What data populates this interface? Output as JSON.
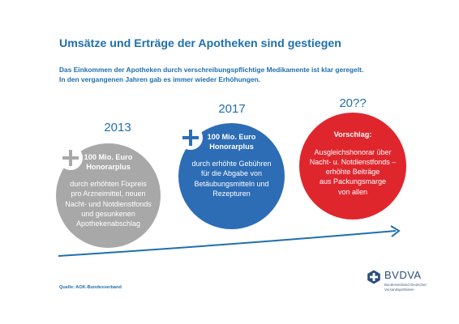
{
  "header": {
    "title": "Umsätze und Erträge der Apotheken sind gestiegen",
    "intro_lines": [
      "Das Einkommen der Apotheken durch verschreibungspflichtige Medikamente ist klar geregelt.",
      "In den vergangenen Jahren gab es immer wieder Erhöhungen."
    ]
  },
  "timeline": [
    {
      "year": "2013",
      "color": "#a8a8a8",
      "icon": "plus-icon",
      "headline_lines": [
        "100 Mio. Euro",
        "Honorarplus"
      ],
      "body_lines": [
        "durch erhöhten Fixpreis",
        "pro Arzneimittel, neuen",
        "Nacht- und Notdienstfonds",
        "und gesunkenen",
        "Apothekenabschlag"
      ]
    },
    {
      "year": "2017",
      "color": "#2d6db5",
      "icon": "plus-icon",
      "headline_lines": [
        "100 Mio. Euro",
        "Honorarplus"
      ],
      "body_lines": [
        "durch erhöhte Gebühren",
        "für die Abgabe von",
        "Betäubungsmitteln und",
        "Rezepturen"
      ]
    },
    {
      "year": "20??",
      "color": "#e0262d",
      "headline_lines": [
        "Vorschlag:"
      ],
      "body_lines": [
        "Ausgleichshonorar über",
        "Nacht- u. Notdienstfonds –",
        "erhöhte Beiträge",
        "aus Packungsmarge",
        "von allen"
      ]
    }
  ],
  "arrow_color": "#1f6fae",
  "footer": {
    "source": "Quelle: AOK-Bundesverband",
    "logo_name": "BVDVA",
    "logo_icon": "bvdva-logo-icon",
    "logo_sub_lines": [
      "Bundesverband Deutscher",
      "Versandapotheken"
    ]
  }
}
